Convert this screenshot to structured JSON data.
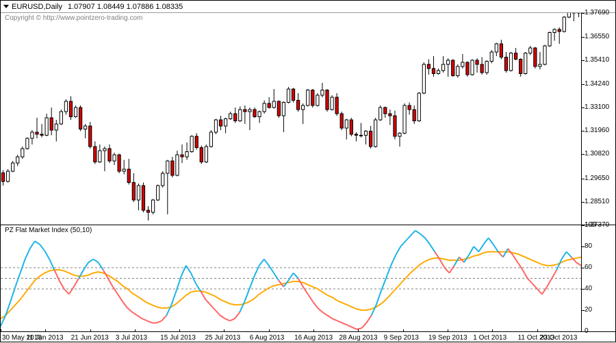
{
  "header": {
    "symbol": "EURUSD,Daily",
    "ohlc": "1.07907 1.08449 1.07886 1.08335"
  },
  "copyright": "Copyright © http://www.pointzero-trading.com",
  "main_chart": {
    "type": "candlestick",
    "background_color": "#ffffff",
    "bull_body_color": "#ffffff",
    "bear_body_color": "#d40000",
    "wick_color": "#000000",
    "border_color": "#000000",
    "y_min": 1.2737,
    "y_max": 1.377,
    "y_ticks": [
      1.2737,
      1.2851,
      1.2965,
      1.3082,
      1.3196,
      1.331,
      1.3424,
      1.3541,
      1.3655,
      1.3769
    ],
    "candles": [
      {
        "o": 1.2992,
        "h": 1.3005,
        "l": 1.293,
        "c": 1.295
      },
      {
        "o": 1.295,
        "h": 1.301,
        "l": 1.2945,
        "c": 1.3
      },
      {
        "o": 1.3,
        "h": 1.305,
        "l": 1.2995,
        "c": 1.304
      },
      {
        "o": 1.304,
        "h": 1.308,
        "l": 1.3025,
        "c": 1.307
      },
      {
        "o": 1.307,
        "h": 1.312,
        "l": 1.306,
        "c": 1.311
      },
      {
        "o": 1.311,
        "h": 1.3165,
        "l": 1.3105,
        "c": 1.316
      },
      {
        "o": 1.316,
        "h": 1.32,
        "l": 1.313,
        "c": 1.319
      },
      {
        "o": 1.319,
        "h": 1.326,
        "l": 1.316,
        "c": 1.318
      },
      {
        "o": 1.318,
        "h": 1.323,
        "l": 1.3165,
        "c": 1.3175
      },
      {
        "o": 1.3175,
        "h": 1.328,
        "l": 1.317,
        "c": 1.326
      },
      {
        "o": 1.326,
        "h": 1.331,
        "l": 1.3175,
        "c": 1.32
      },
      {
        "o": 1.32,
        "h": 1.325,
        "l": 1.3145,
        "c": 1.323
      },
      {
        "o": 1.323,
        "h": 1.33,
        "l": 1.3225,
        "c": 1.329
      },
      {
        "o": 1.329,
        "h": 1.335,
        "l": 1.3275,
        "c": 1.334
      },
      {
        "o": 1.334,
        "h": 1.3365,
        "l": 1.325,
        "c": 1.3265
      },
      {
        "o": 1.3265,
        "h": 1.332,
        "l": 1.326,
        "c": 1.331
      },
      {
        "o": 1.331,
        "h": 1.332,
        "l": 1.3195,
        "c": 1.3205
      },
      {
        "o": 1.3205,
        "h": 1.323,
        "l": 1.316,
        "c": 1.322
      },
      {
        "o": 1.322,
        "h": 1.324,
        "l": 1.311,
        "c": 1.312
      },
      {
        "o": 1.312,
        "h": 1.3145,
        "l": 1.3035,
        "c": 1.3045
      },
      {
        "o": 1.3045,
        "h": 1.313,
        "l": 1.304,
        "c": 1.31
      },
      {
        "o": 1.31,
        "h": 1.312,
        "l": 1.3,
        "c": 1.311
      },
      {
        "o": 1.311,
        "h": 1.313,
        "l": 1.304,
        "c": 1.305
      },
      {
        "o": 1.305,
        "h": 1.309,
        "l": 1.303,
        "c": 1.308
      },
      {
        "o": 1.308,
        "h": 1.3085,
        "l": 1.299,
        "c": 1.3
      },
      {
        "o": 1.3,
        "h": 1.3055,
        "l": 1.2985,
        "c": 1.301
      },
      {
        "o": 1.301,
        "h": 1.306,
        "l": 1.2935,
        "c": 1.2945
      },
      {
        "o": 1.2945,
        "h": 1.299,
        "l": 1.285,
        "c": 1.286
      },
      {
        "o": 1.286,
        "h": 1.294,
        "l": 1.281,
        "c": 1.293
      },
      {
        "o": 1.293,
        "h": 1.2945,
        "l": 1.28,
        "c": 1.281
      },
      {
        "o": 1.281,
        "h": 1.283,
        "l": 1.276,
        "c": 1.28
      },
      {
        "o": 1.28,
        "h": 1.2865,
        "l": 1.279,
        "c": 1.286
      },
      {
        "o": 1.286,
        "h": 1.2935,
        "l": 1.2855,
        "c": 1.293
      },
      {
        "o": 1.293,
        "h": 1.3,
        "l": 1.292,
        "c": 1.299
      },
      {
        "o": 1.299,
        "h": 1.3055,
        "l": 1.279,
        "c": 1.305
      },
      {
        "o": 1.305,
        "h": 1.307,
        "l": 1.297,
        "c": 1.298
      },
      {
        "o": 1.298,
        "h": 1.31,
        "l": 1.2975,
        "c": 1.308
      },
      {
        "o": 1.308,
        "h": 1.313,
        "l": 1.304,
        "c": 1.307
      },
      {
        "o": 1.307,
        "h": 1.314,
        "l": 1.3055,
        "c": 1.3095
      },
      {
        "o": 1.3095,
        "h": 1.3175,
        "l": 1.309,
        "c": 1.317
      },
      {
        "o": 1.317,
        "h": 1.3185,
        "l": 1.3105,
        "c": 1.3115
      },
      {
        "o": 1.3115,
        "h": 1.3125,
        "l": 1.3035,
        "c": 1.3045
      },
      {
        "o": 1.3045,
        "h": 1.313,
        "l": 1.304,
        "c": 1.312
      },
      {
        "o": 1.312,
        "h": 1.32,
        "l": 1.3115,
        "c": 1.319
      },
      {
        "o": 1.319,
        "h": 1.3255,
        "l": 1.318,
        "c": 1.325
      },
      {
        "o": 1.325,
        "h": 1.327,
        "l": 1.32,
        "c": 1.322
      },
      {
        "o": 1.322,
        "h": 1.326,
        "l": 1.3185,
        "c": 1.3255
      },
      {
        "o": 1.3255,
        "h": 1.329,
        "l": 1.325,
        "c": 1.328
      },
      {
        "o": 1.328,
        "h": 1.331,
        "l": 1.3235,
        "c": 1.3245
      },
      {
        "o": 1.3245,
        "h": 1.3315,
        "l": 1.324,
        "c": 1.33
      },
      {
        "o": 1.33,
        "h": 1.332,
        "l": 1.323,
        "c": 1.329
      },
      {
        "o": 1.329,
        "h": 1.331,
        "l": 1.32,
        "c": 1.33
      },
      {
        "o": 1.33,
        "h": 1.331,
        "l": 1.326,
        "c": 1.3265
      },
      {
        "o": 1.3265,
        "h": 1.3295,
        "l": 1.3235,
        "c": 1.329
      },
      {
        "o": 1.329,
        "h": 1.3345,
        "l": 1.328,
        "c": 1.333
      },
      {
        "o": 1.333,
        "h": 1.336,
        "l": 1.3305,
        "c": 1.331
      },
      {
        "o": 1.331,
        "h": 1.34,
        "l": 1.3305,
        "c": 1.334
      },
      {
        "o": 1.334,
        "h": 1.3345,
        "l": 1.326,
        "c": 1.327
      },
      {
        "o": 1.327,
        "h": 1.334,
        "l": 1.319,
        "c": 1.3335
      },
      {
        "o": 1.3335,
        "h": 1.341,
        "l": 1.333,
        "c": 1.34
      },
      {
        "o": 1.34,
        "h": 1.3405,
        "l": 1.3335,
        "c": 1.3345
      },
      {
        "o": 1.3345,
        "h": 1.338,
        "l": 1.329,
        "c": 1.33
      },
      {
        "o": 1.33,
        "h": 1.333,
        "l": 1.323,
        "c": 1.332
      },
      {
        "o": 1.332,
        "h": 1.34,
        "l": 1.3315,
        "c": 1.3395
      },
      {
        "o": 1.3395,
        "h": 1.34,
        "l": 1.331,
        "c": 1.332
      },
      {
        "o": 1.332,
        "h": 1.338,
        "l": 1.3315,
        "c": 1.337
      },
      {
        "o": 1.337,
        "h": 1.343,
        "l": 1.336,
        "c": 1.3395
      },
      {
        "o": 1.3395,
        "h": 1.34,
        "l": 1.329,
        "c": 1.33
      },
      {
        "o": 1.33,
        "h": 1.337,
        "l": 1.3295,
        "c": 1.336
      },
      {
        "o": 1.336,
        "h": 1.338,
        "l": 1.327,
        "c": 1.328
      },
      {
        "o": 1.328,
        "h": 1.329,
        "l": 1.32,
        "c": 1.321
      },
      {
        "o": 1.321,
        "h": 1.3255,
        "l": 1.3155,
        "c": 1.325
      },
      {
        "o": 1.325,
        "h": 1.326,
        "l": 1.317,
        "c": 1.318
      },
      {
        "o": 1.318,
        "h": 1.319,
        "l": 1.3145,
        "c": 1.3175
      },
      {
        "o": 1.3175,
        "h": 1.3235,
        "l": 1.3165,
        "c": 1.3175
      },
      {
        "o": 1.3175,
        "h": 1.32,
        "l": 1.313,
        "c": 1.3195
      },
      {
        "o": 1.3195,
        "h": 1.322,
        "l": 1.311,
        "c": 1.312
      },
      {
        "o": 1.312,
        "h": 1.326,
        "l": 1.3115,
        "c": 1.325
      },
      {
        "o": 1.325,
        "h": 1.332,
        "l": 1.3245,
        "c": 1.331
      },
      {
        "o": 1.331,
        "h": 1.3315,
        "l": 1.326,
        "c": 1.328
      },
      {
        "o": 1.328,
        "h": 1.33,
        "l": 1.3225,
        "c": 1.327
      },
      {
        "o": 1.327,
        "h": 1.3295,
        "l": 1.3155,
        "c": 1.317
      },
      {
        "o": 1.317,
        "h": 1.319,
        "l": 1.312,
        "c": 1.3185
      },
      {
        "o": 1.3185,
        "h": 1.333,
        "l": 1.318,
        "c": 1.332
      },
      {
        "o": 1.332,
        "h": 1.3335,
        "l": 1.3275,
        "c": 1.33
      },
      {
        "o": 1.33,
        "h": 1.332,
        "l": 1.323,
        "c": 1.3245
      },
      {
        "o": 1.3245,
        "h": 1.3385,
        "l": 1.324,
        "c": 1.338
      },
      {
        "o": 1.338,
        "h": 1.353,
        "l": 1.3375,
        "c": 1.352
      },
      {
        "o": 1.352,
        "h": 1.3545,
        "l": 1.347,
        "c": 1.35
      },
      {
        "o": 1.35,
        "h": 1.356,
        "l": 1.346,
        "c": 1.3475
      },
      {
        "o": 1.3475,
        "h": 1.35,
        "l": 1.347,
        "c": 1.349
      },
      {
        "o": 1.349,
        "h": 1.356,
        "l": 1.348,
        "c": 1.352
      },
      {
        "o": 1.352,
        "h": 1.355,
        "l": 1.346,
        "c": 1.354
      },
      {
        "o": 1.354,
        "h": 1.3545,
        "l": 1.346,
        "c": 1.3465
      },
      {
        "o": 1.3465,
        "h": 1.352,
        "l": 1.3455,
        "c": 1.351
      },
      {
        "o": 1.351,
        "h": 1.357,
        "l": 1.35,
        "c": 1.353
      },
      {
        "o": 1.353,
        "h": 1.3535,
        "l": 1.346,
        "c": 1.347
      },
      {
        "o": 1.347,
        "h": 1.3545,
        "l": 1.3465,
        "c": 1.354
      },
      {
        "o": 1.354,
        "h": 1.355,
        "l": 1.348,
        "c": 1.352
      },
      {
        "o": 1.352,
        "h": 1.3555,
        "l": 1.347,
        "c": 1.348
      },
      {
        "o": 1.348,
        "h": 1.354,
        "l": 1.347,
        "c": 1.3535
      },
      {
        "o": 1.3535,
        "h": 1.359,
        "l": 1.3525,
        "c": 1.358
      },
      {
        "o": 1.358,
        "h": 1.3625,
        "l": 1.356,
        "c": 1.362
      },
      {
        "o": 1.362,
        "h": 1.364,
        "l": 1.3545,
        "c": 1.3555
      },
      {
        "o": 1.3555,
        "h": 1.358,
        "l": 1.348,
        "c": 1.349
      },
      {
        "o": 1.349,
        "h": 1.358,
        "l": 1.3485,
        "c": 1.3575
      },
      {
        "o": 1.3575,
        "h": 1.36,
        "l": 1.354,
        "c": 1.3545
      },
      {
        "o": 1.3545,
        "h": 1.355,
        "l": 1.346,
        "c": 1.3475
      },
      {
        "o": 1.3475,
        "h": 1.358,
        "l": 1.347,
        "c": 1.3575
      },
      {
        "o": 1.3575,
        "h": 1.361,
        "l": 1.3565,
        "c": 1.36
      },
      {
        "o": 1.36,
        "h": 1.3605,
        "l": 1.35,
        "c": 1.351
      },
      {
        "o": 1.351,
        "h": 1.358,
        "l": 1.3495,
        "c": 1.352
      },
      {
        "o": 1.352,
        "h": 1.3615,
        "l": 1.3515,
        "c": 1.361
      },
      {
        "o": 1.361,
        "h": 1.368,
        "l": 1.3605,
        "c": 1.3675
      },
      {
        "o": 1.3675,
        "h": 1.3695,
        "l": 1.3635,
        "c": 1.369
      },
      {
        "o": 1.369,
        "h": 1.37,
        "l": 1.362,
        "c": 1.368
      },
      {
        "o": 1.368,
        "h": 1.3755,
        "l": 1.3675,
        "c": 1.375
      },
      {
        "o": 1.375,
        "h": 1.379,
        "l": 1.3745,
        "c": 1.3785
      },
      {
        "o": 1.3785,
        "h": 1.38,
        "l": 1.373,
        "c": 1.377
      },
      {
        "o": 1.377,
        "h": 1.379,
        "l": 1.375,
        "c": 1.378
      }
    ]
  },
  "x_axis": {
    "labels": [
      "30 May 2013",
      "11 Jun 2013",
      "21 Jun 2013",
      "3 Jul 2013",
      "15 Jul 2013",
      "25 Jul 2013",
      "6 Aug 2013",
      "16 Aug 2013",
      "28 Aug 2013",
      "9 Sep 2013",
      "19 Sep 2013",
      "1 Oct 2013",
      "11 Oct 2013",
      "23 Oct 2013"
    ],
    "positions": [
      0.0,
      0.077,
      0.154,
      0.231,
      0.308,
      0.385,
      0.462,
      0.539,
      0.616,
      0.693,
      0.77,
      0.847,
      0.924,
      1.0
    ]
  },
  "indicator": {
    "type": "line",
    "title": "PZ Flat Market Index (50,10)",
    "background_color": "#ffffff",
    "y_min": 0,
    "y_max": 100,
    "y_ticks": [
      0,
      20,
      40,
      60,
      80,
      100
    ],
    "dashed_levels": [
      40,
      50,
      60
    ],
    "dash_color": "#808080",
    "fast_color_up": "#1eb4e6",
    "fast_color_down": "#ff6464",
    "slow_color": "#ffaa00",
    "line_width": 2,
    "fast": [
      5,
      15,
      28,
      42,
      55,
      68,
      78,
      85,
      82,
      76,
      68,
      58,
      48,
      40,
      35,
      42,
      50,
      58,
      65,
      68,
      65,
      58,
      50,
      42,
      35,
      28,
      22,
      18,
      15,
      12,
      10,
      8,
      8,
      10,
      15,
      25,
      38,
      52,
      62,
      55,
      45,
      38,
      30,
      25,
      20,
      15,
      12,
      10,
      12,
      18,
      28,
      40,
      52,
      62,
      68,
      62,
      55,
      48,
      42,
      48,
      55,
      50,
      42,
      35,
      28,
      22,
      18,
      15,
      12,
      10,
      8,
      6,
      4,
      2,
      3,
      8,
      15,
      25,
      38,
      50,
      62,
      72,
      80,
      85,
      90,
      95,
      92,
      88,
      82,
      75,
      68,
      60,
      55,
      62,
      70,
      65,
      72,
      80,
      75,
      82,
      88,
      82,
      75,
      70,
      78,
      72,
      65,
      58,
      50,
      45,
      40,
      35,
      42,
      50,
      58,
      68,
      75,
      70,
      65,
      62
    ],
    "slow": [
      12,
      15,
      20,
      25,
      30,
      36,
      42,
      48,
      52,
      55,
      57,
      58,
      58,
      57,
      55,
      53,
      52,
      52,
      53,
      55,
      56,
      55,
      53,
      50,
      47,
      43,
      40,
      36,
      33,
      30,
      27,
      25,
      23,
      22,
      22,
      23,
      26,
      30,
      34,
      37,
      38,
      38,
      37,
      35,
      33,
      30,
      28,
      26,
      25,
      25,
      26,
      28,
      31,
      35,
      38,
      41,
      43,
      44,
      45,
      46,
      47,
      47,
      46,
      44,
      42,
      40,
      37,
      34,
      32,
      29,
      27,
      25,
      23,
      21,
      20,
      20,
      21,
      23,
      26,
      30,
      35,
      40,
      45,
      50,
      55,
      59,
      63,
      66,
      68,
      69,
      69,
      68,
      67,
      67,
      67,
      68,
      69,
      71,
      72,
      74,
      75,
      75,
      75,
      75,
      75,
      74,
      73,
      71,
      69,
      67,
      65,
      63,
      62,
      62,
      63,
      65,
      67,
      68,
      69,
      70
    ]
  }
}
